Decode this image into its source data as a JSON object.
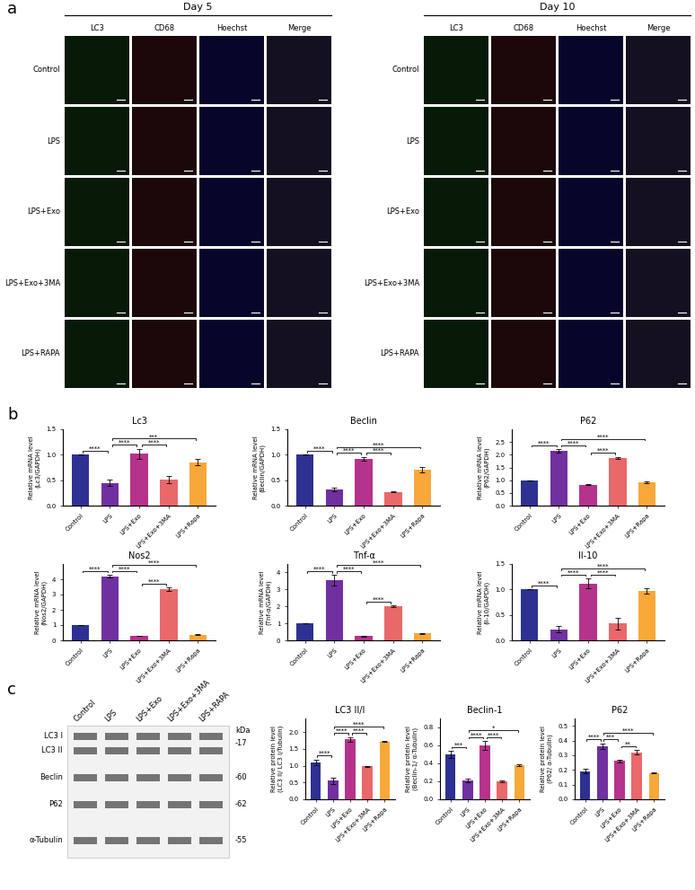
{
  "panel_labels": [
    "a",
    "b",
    "c"
  ],
  "panel_a": {
    "groups": [
      "Day 5",
      "Day 10"
    ],
    "columns": [
      "LC3",
      "CD68",
      "Hoechst",
      "Merge"
    ],
    "rows": [
      "Control",
      "LPS",
      "LPS+Exo",
      "LPS+Exo+3MA",
      "LPS+RAPA"
    ]
  },
  "panel_c_blot": {
    "lanes": [
      "Control",
      "LPS",
      "LPS+Exo",
      "LPS+Exo+3MA",
      "LPS+RAPA"
    ],
    "unit": "kDa",
    "rows": [
      {
        "labels": [
          "LC3 I",
          "LC3 II"
        ],
        "size": "-17"
      },
      {
        "labels": [
          "Beclin"
        ],
        "size": "-60"
      },
      {
        "labels": [
          "P62"
        ],
        "size": "-62"
      },
      {
        "labels": [
          "α-Tubulin"
        ],
        "size": "-55"
      }
    ]
  },
  "chart_data": [
    {
      "type": "bar",
      "title": "Lc3",
      "y_label": "Relative mRNA level\n(Lc3/GAPDH)",
      "categories": [
        "Control",
        "LPS",
        "LPS+Exo",
        "LPS+Exo+3MA",
        "LPS+Rapa"
      ],
      "values": [
        1.0,
        0.45,
        1.02,
        0.52,
        0.85
      ],
      "errors": [
        0,
        0.07,
        0.1,
        0.07,
        0.06
      ],
      "colors": [
        "#2e3192",
        "#7030a0",
        "#b5338a",
        "#e9686a",
        "#f7a839"
      ],
      "ylim": [
        0,
        1.5
      ],
      "yticks": [
        {
          "value": 0,
          "label": "0.0"
        },
        0.5,
        {
          "value": 1,
          "label": "1.0"
        },
        1.5
      ],
      "significance": [
        {
          "between": [
            "Control",
            "LPS"
          ],
          "label": "****"
        },
        {
          "between": [
            "LPS",
            "LPS+Exo"
          ],
          "label": "****"
        },
        {
          "between": [
            "LPS+Exo",
            "LPS+Exo+3MA"
          ],
          "label": "****"
        },
        {
          "between": [
            "LPS",
            "LPS+Rapa"
          ],
          "label": "***"
        }
      ]
    },
    {
      "type": "bar",
      "title": "Beclin",
      "y_label": "Relative mRNA level\n(Beclin/GAPDH)",
      "categories": [
        "Control",
        "LPS",
        "LPS+Exo",
        "LPS+Exo+3MA",
        "LPS+Rapa"
      ],
      "values": [
        1.0,
        0.32,
        0.92,
        0.27,
        0.71
      ],
      "errors": [
        0,
        0.04,
        0.04,
        0.01,
        0.05
      ],
      "colors": [
        "#2e3192",
        "#7030a0",
        "#b5338a",
        "#e9686a",
        "#f7a839"
      ],
      "ylim": [
        0,
        1.5
      ],
      "yticks": [
        {
          "value": 0,
          "label": "0.0"
        },
        0.5,
        {
          "value": 1,
          "label": "1.0"
        },
        1.5
      ],
      "significance": [
        {
          "between": [
            "Control",
            "LPS"
          ],
          "label": "****"
        },
        {
          "between": [
            "LPS",
            "LPS+Exo"
          ],
          "label": "****"
        },
        {
          "between": [
            "LPS+Exo",
            "LPS+Exo+3MA"
          ],
          "label": "****"
        },
        {
          "between": [
            "LPS",
            "LPS+Rapa"
          ],
          "label": "****"
        }
      ]
    },
    {
      "type": "bar",
      "title": "P62",
      "y_label": "Relative mRNA level\n(P62/GAPDH)",
      "categories": [
        "Control",
        "LPS",
        "LPS+Exo",
        "LPS+Exo+3MA",
        "LPS+Rapa"
      ],
      "values": [
        1.0,
        2.15,
        0.82,
        1.87,
        0.93
      ],
      "errors": [
        0,
        0.08,
        0.02,
        0.05,
        0.03
      ],
      "colors": [
        "#2e3192",
        "#7030a0",
        "#b5338a",
        "#e9686a",
        "#f7a839"
      ],
      "ylim": [
        0,
        3
      ],
      "yticks": [
        {
          "value": 0,
          "label": "0.0"
        },
        0.5,
        {
          "value": 1,
          "label": "1.0"
        },
        1.5,
        {
          "value": 2,
          "label": "2.0"
        },
        2.5
      ],
      "significance": [
        {
          "between": [
            "Control",
            "LPS"
          ],
          "label": "****"
        },
        {
          "between": [
            "LPS",
            "LPS+Exo"
          ],
          "label": "****"
        },
        {
          "between": [
            "LPS+Exo",
            "LPS+Exo+3MA"
          ],
          "label": "****"
        },
        {
          "between": [
            "LPS",
            "LPS+Rapa"
          ],
          "label": "****"
        }
      ]
    },
    {
      "type": "bar",
      "title": "Nos2",
      "y_label": "Relative mRNA level\n(Nos2/GAPDH)",
      "categories": [
        "Control",
        "LPS",
        "LPS+Exo",
        "LPS+Exo+3MA",
        "LPS+Rapa"
      ],
      "values": [
        1.0,
        4.2,
        0.3,
        3.35,
        0.38
      ],
      "errors": [
        0,
        0.1,
        0.02,
        0.1,
        0.02
      ],
      "colors": [
        "#2e3192",
        "#7030a0",
        "#b5338a",
        "#e9686a",
        "#f7a839"
      ],
      "ylim": [
        0,
        5
      ],
      "yticks": [
        0,
        1,
        2,
        3,
        4
      ],
      "significance": [
        {
          "between": [
            "Control",
            "LPS"
          ],
          "label": "****"
        },
        {
          "between": [
            "LPS",
            "LPS+Exo"
          ],
          "label": "****"
        },
        {
          "between": [
            "LPS+Exo",
            "LPS+Exo+3MA"
          ],
          "label": "****"
        },
        {
          "between": [
            "LPS",
            "LPS+Rapa"
          ],
          "label": "****"
        }
      ]
    },
    {
      "type": "bar",
      "title": "Tnf-α",
      "y_label": "Relative mRNA level\n(Tnf-α/GAPDH)",
      "categories": [
        "Control",
        "LPS",
        "LPS+Exo",
        "LPS+Exo+3MA",
        "LPS+Rapa"
      ],
      "values": [
        1.0,
        3.55,
        0.25,
        2.0,
        0.4
      ],
      "errors": [
        0,
        0.3,
        0.03,
        0.05,
        0.03
      ],
      "colors": [
        "#2e3192",
        "#7030a0",
        "#b5338a",
        "#e9686a",
        "#f7a839"
      ],
      "ylim": [
        0,
        4.5
      ],
      "yticks": [
        0,
        1,
        2,
        3,
        4
      ],
      "significance": [
        {
          "between": [
            "Control",
            "LPS"
          ],
          "label": "****"
        },
        {
          "between": [
            "LPS",
            "LPS+Exo"
          ],
          "label": "****"
        },
        {
          "between": [
            "LPS+Exo",
            "LPS+Exo+3MA"
          ],
          "label": "****"
        },
        {
          "between": [
            "LPS",
            "LPS+Rapa"
          ],
          "label": "****"
        }
      ]
    },
    {
      "type": "bar",
      "title": "Il-10",
      "y_label": "Relative mRNA level\n(Il-10/GAPDH)",
      "categories": [
        "Control",
        "LPS",
        "LPS+Exo",
        "LPS+Exo+3MA",
        "LPS+Rapa"
      ],
      "values": [
        1.0,
        0.22,
        1.12,
        0.33,
        0.97
      ],
      "errors": [
        0,
        0.06,
        0.1,
        0.12,
        0.05
      ],
      "colors": [
        "#2e3192",
        "#7030a0",
        "#b5338a",
        "#e9686a",
        "#f7a839"
      ],
      "ylim": [
        0,
        1.5
      ],
      "yticks": [
        {
          "value": 0,
          "label": "0.0"
        },
        0.5,
        {
          "value": 1,
          "label": "1.0"
        },
        1.5
      ],
      "significance": [
        {
          "between": [
            "Control",
            "LPS"
          ],
          "label": "****"
        },
        {
          "between": [
            "LPS",
            "LPS+Exo"
          ],
          "label": "****"
        },
        {
          "between": [
            "LPS+Exo",
            "LPS+Exo+3MA"
          ],
          "label": "****"
        },
        {
          "between": [
            "LPS",
            "LPS+Rapa"
          ],
          "label": "****"
        }
      ]
    },
    {
      "type": "bar",
      "title": "LC3 II/I",
      "y_label": "Relative protein level\n(LC3 II/ LC3 I/Tubulin)",
      "categories": [
        "Control",
        "LPS",
        "LPS+Exo",
        "LPS+Exo+3MA",
        "LPS+Rapa"
      ],
      "values": [
        1.1,
        0.55,
        1.78,
        0.98,
        1.72
      ],
      "errors": [
        0.08,
        0.1,
        0.07,
        0.02,
        0.01
      ],
      "colors": [
        "#2e3192",
        "#7030a0",
        "#b5338a",
        "#e9686a",
        "#f7a839"
      ],
      "ylim": [
        0,
        2.4
      ],
      "yticks": [
        {
          "value": 0,
          "label": "0.0"
        },
        0.5,
        {
          "value": 1,
          "label": "1.0"
        },
        1.5,
        {
          "value": 2,
          "label": "2.0"
        }
      ],
      "significance": [
        {
          "between": [
            "Control",
            "LPS"
          ],
          "label": "****"
        },
        {
          "between": [
            "LPS",
            "LPS+Exo"
          ],
          "label": "****"
        },
        {
          "between": [
            "LPS+Exo",
            "LPS+Exo+3MA"
          ],
          "label": "****"
        },
        {
          "between": [
            "LPS",
            "LPS+Rapa"
          ],
          "label": "****"
        }
      ]
    },
    {
      "type": "bar",
      "title": "Beclin-1",
      "y_label": "Relative protein level\n(Beclin-1/ α-Tubulin)",
      "categories": [
        "Control",
        "LPS",
        "LPS+Exo",
        "LPS+Exo+3MA",
        "LPS+Rapa"
      ],
      "values": [
        0.5,
        0.21,
        0.6,
        0.2,
        0.38
      ],
      "errors": [
        0.04,
        0.02,
        0.05,
        0.01,
        0.01
      ],
      "colors": [
        "#2e3192",
        "#7030a0",
        "#b5338a",
        "#e9686a",
        "#f7a839"
      ],
      "ylim": [
        0,
        0.9
      ],
      "yticks": [
        {
          "value": 0,
          "label": "0.0"
        },
        0.2,
        0.4,
        0.6,
        0.8
      ],
      "significance": [
        {
          "between": [
            "Control",
            "LPS"
          ],
          "label": "***"
        },
        {
          "between": [
            "LPS",
            "LPS+Exo"
          ],
          "label": "****"
        },
        {
          "between": [
            "LPS+Exo",
            "LPS+Exo+3MA"
          ],
          "label": "****"
        },
        {
          "between": [
            "LPS",
            "LPS+Rapa"
          ],
          "label": "*"
        }
      ]
    },
    {
      "type": "bar",
      "title": "P62",
      "y_label": "Relative protein level\n(P62/ α-Tubulin)",
      "categories": [
        "Control",
        "LPS",
        "LPS+Exo",
        "LPS+Exo+3MA",
        "LPS+Rapa"
      ],
      "values": [
        0.19,
        0.36,
        0.26,
        0.32,
        0.18
      ],
      "errors": [
        0.015,
        0.02,
        0.01,
        0.015,
        0.005
      ],
      "colors": [
        "#2e3192",
        "#7030a0",
        "#b5338a",
        "#e9686a",
        "#f7a839"
      ],
      "ylim": [
        0,
        0.55
      ],
      "yticks": [
        {
          "value": 0,
          "label": "0.0"
        },
        0.1,
        0.2,
        0.3,
        0.4,
        0.5
      ],
      "significance": [
        {
          "between": [
            "Control",
            "LPS"
          ],
          "label": "****"
        },
        {
          "between": [
            "LPS",
            "LPS+Exo"
          ],
          "label": "***"
        },
        {
          "between": [
            "LPS+Exo",
            "LPS+Exo+3MA"
          ],
          "label": "**"
        },
        {
          "between": [
            "LPS",
            "LPS+Rapa"
          ],
          "label": "****"
        }
      ]
    }
  ]
}
